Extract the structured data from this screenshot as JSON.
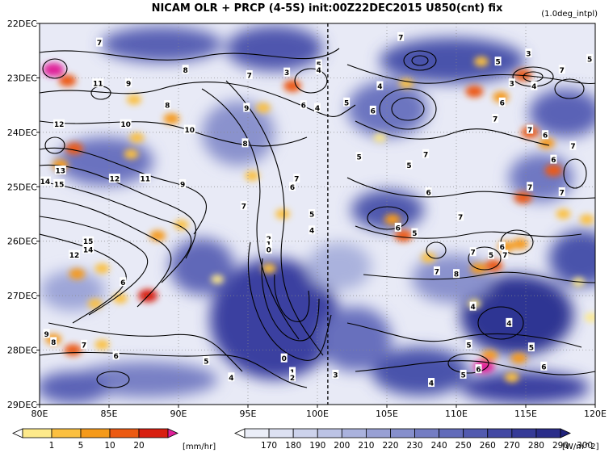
{
  "chart_data": {
    "type": "heatmap",
    "title": "NICAM  OLR + PRCP (4-5S) init:00Z22DEC2015  U850(cnt)  fix",
    "subtitle": "(1.0deg_intpl)",
    "xlabel": "",
    "ylabel": "",
    "x_ticks": [
      "80E",
      "85E",
      "90E",
      "95E",
      "100E",
      "105E",
      "110E",
      "115E",
      "120E"
    ],
    "x_tick_values": [
      80,
      85,
      90,
      95,
      100,
      105,
      110,
      115,
      120
    ],
    "xlim": [
      80,
      120
    ],
    "y_ticks": [
      "22DEC",
      "23DEC",
      "24DEC",
      "25DEC",
      "26DEC",
      "27DEC",
      "28DEC",
      "29DEC"
    ],
    "y_tick_values": [
      22,
      23,
      24,
      25,
      26,
      27,
      28,
      29
    ],
    "ylim": [
      22,
      29
    ],
    "grid": true,
    "reference_line": {
      "x": 100.75,
      "style": "dashed"
    },
    "precip_colorbar": {
      "unit": "[mm/hr]",
      "ticks": [
        "1",
        "5",
        "10",
        "20"
      ],
      "colors": [
        "#ffffff",
        "#fde98a",
        "#fbc040",
        "#f59a1a",
        "#ec5a12",
        "#d81f10",
        "#e0209a"
      ]
    },
    "olr_colorbar": {
      "unit": "[W/m^2]",
      "ticks": [
        "170",
        "180",
        "190",
        "200",
        "210",
        "220",
        "230",
        "240",
        "250",
        "260",
        "270",
        "280",
        "290",
        "300"
      ],
      "colors": [
        "#ffffff",
        "#ebeef8",
        "#dde1f2",
        "#cdd3ec",
        "#bcc3e5",
        "#aab2dd",
        "#98a0d4",
        "#868fcc",
        "#747dc3",
        "#626bba",
        "#525aaf",
        "#4248a3",
        "#353a97",
        "#2a2d8a",
        "#20227c"
      ]
    },
    "contour_labels": [
      {
        "text": "7",
        "lon": 84.3,
        "day": 22.35
      },
      {
        "text": "8",
        "lon": 90.5,
        "day": 22.85
      },
      {
        "text": "7",
        "lon": 95.1,
        "day": 22.95
      },
      {
        "text": "5",
        "lon": 100.1,
        "day": 22.75
      },
      {
        "text": "4",
        "lon": 100.1,
        "day": 22.85
      },
      {
        "text": "3",
        "lon": 97.8,
        "day": 22.9
      },
      {
        "text": "11",
        "lon": 84.2,
        "day": 23.1
      },
      {
        "text": "9",
        "lon": 86.4,
        "day": 23.1
      },
      {
        "text": "8",
        "lon": 89.2,
        "day": 23.5
      },
      {
        "text": "9",
        "lon": 94.9,
        "day": 23.55
      },
      {
        "text": "6",
        "lon": 99.0,
        "day": 23.5
      },
      {
        "text": "4",
        "lon": 100.0,
        "day": 23.55
      },
      {
        "text": "5",
        "lon": 102.1,
        "day": 23.45
      },
      {
        "text": "12",
        "lon": 81.4,
        "day": 23.85
      },
      {
        "text": "10",
        "lon": 86.2,
        "day": 23.85
      },
      {
        "text": "10",
        "lon": 90.8,
        "day": 23.95
      },
      {
        "text": "8",
        "lon": 94.8,
        "day": 24.2
      },
      {
        "text": "13",
        "lon": 81.5,
        "day": 24.7
      },
      {
        "text": "14",
        "lon": 80.4,
        "day": 24.9
      },
      {
        "text": "15",
        "lon": 81.4,
        "day": 24.95
      },
      {
        "text": "12",
        "lon": 85.4,
        "day": 24.85
      },
      {
        "text": "11",
        "lon": 87.6,
        "day": 24.85
      },
      {
        "text": "9",
        "lon": 90.3,
        "day": 24.95
      },
      {
        "text": "7",
        "lon": 98.5,
        "day": 24.85
      },
      {
        "text": "6",
        "lon": 98.2,
        "day": 25.0
      },
      {
        "text": "7",
        "lon": 94.7,
        "day": 25.35
      },
      {
        "text": "5",
        "lon": 99.6,
        "day": 25.5
      },
      {
        "text": "4",
        "lon": 99.6,
        "day": 25.8
      },
      {
        "text": "15",
        "lon": 83.5,
        "day": 26.0
      },
      {
        "text": "14",
        "lon": 83.5,
        "day": 26.15
      },
      {
        "text": "12",
        "lon": 82.5,
        "day": 26.25
      },
      {
        "text": "2",
        "lon": 96.5,
        "day": 25.95
      },
      {
        "text": "1",
        "lon": 96.5,
        "day": 26.05
      },
      {
        "text": "0",
        "lon": 96.5,
        "day": 26.15
      },
      {
        "text": "6",
        "lon": 86.0,
        "day": 26.75
      },
      {
        "text": "9",
        "lon": 80.5,
        "day": 27.7
      },
      {
        "text": "8",
        "lon": 81.0,
        "day": 27.85
      },
      {
        "text": "7",
        "lon": 83.2,
        "day": 27.9
      },
      {
        "text": "6",
        "lon": 85.5,
        "day": 28.1
      },
      {
        "text": "5",
        "lon": 92.0,
        "day": 28.2
      },
      {
        "text": "4",
        "lon": 93.8,
        "day": 28.5
      },
      {
        "text": "0",
        "lon": 97.6,
        "day": 28.15
      },
      {
        "text": "1",
        "lon": 98.2,
        "day": 28.4
      },
      {
        "text": "2",
        "lon": 98.2,
        "day": 28.5
      },
      {
        "text": "3",
        "lon": 101.3,
        "day": 28.45
      },
      {
        "text": "7",
        "lon": 106.0,
        "day": 22.25
      },
      {
        "text": "4",
        "lon": 104.5,
        "day": 23.15
      },
      {
        "text": "6",
        "lon": 104.0,
        "day": 23.6
      },
      {
        "text": "5",
        "lon": 103.0,
        "day": 24.45
      },
      {
        "text": "7",
        "lon": 107.8,
        "day": 24.4
      },
      {
        "text": "5",
        "lon": 106.6,
        "day": 24.6
      },
      {
        "text": "6",
        "lon": 108.0,
        "day": 25.1
      },
      {
        "text": "7",
        "lon": 110.3,
        "day": 25.55
      },
      {
        "text": "6",
        "lon": 105.8,
        "day": 25.75
      },
      {
        "text": "5",
        "lon": 107.0,
        "day": 25.85
      },
      {
        "text": "7",
        "lon": 111.2,
        "day": 26.2
      },
      {
        "text": "7",
        "lon": 108.6,
        "day": 26.55
      },
      {
        "text": "8",
        "lon": 110.0,
        "day": 26.6
      },
      {
        "text": "5",
        "lon": 112.5,
        "day": 26.25
      },
      {
        "text": "6",
        "lon": 113.3,
        "day": 26.1
      },
      {
        "text": "7",
        "lon": 113.5,
        "day": 26.25
      },
      {
        "text": "4",
        "lon": 111.2,
        "day": 27.2
      },
      {
        "text": "5",
        "lon": 110.9,
        "day": 27.9
      },
      {
        "text": "4",
        "lon": 113.8,
        "day": 27.5
      },
      {
        "text": "5",
        "lon": 115.4,
        "day": 27.95
      },
      {
        "text": "6",
        "lon": 116.3,
        "day": 28.3
      },
      {
        "text": "6",
        "lon": 111.6,
        "day": 28.35
      },
      {
        "text": "5",
        "lon": 110.5,
        "day": 28.45
      },
      {
        "text": "4",
        "lon": 108.2,
        "day": 28.6
      },
      {
        "text": "5",
        "lon": 113.0,
        "day": 22.7
      },
      {
        "text": "3",
        "lon": 115.2,
        "day": 22.55
      },
      {
        "text": "5",
        "lon": 119.6,
        "day": 22.65
      },
      {
        "text": "7",
        "lon": 117.6,
        "day": 22.85
      },
      {
        "text": "3",
        "lon": 114.0,
        "day": 23.1
      },
      {
        "text": "4",
        "lon": 115.6,
        "day": 23.15
      },
      {
        "text": "6",
        "lon": 113.3,
        "day": 23.45
      },
      {
        "text": "7",
        "lon": 112.8,
        "day": 23.75
      },
      {
        "text": "7",
        "lon": 115.3,
        "day": 23.95
      },
      {
        "text": "6",
        "lon": 116.4,
        "day": 24.05
      },
      {
        "text": "7",
        "lon": 118.4,
        "day": 24.25
      },
      {
        "text": "6",
        "lon": 117.0,
        "day": 24.5
      },
      {
        "text": "7",
        "lon": 117.6,
        "day": 25.1
      },
      {
        "text": "7",
        "lon": 115.3,
        "day": 25.0
      }
    ],
    "precip_patches": [
      {
        "lon": 82,
        "day": 23.05,
        "level": 4
      },
      {
        "lon": 81,
        "day": 22.85,
        "level": 6
      },
      {
        "lon": 86.8,
        "day": 23.4,
        "level": 2
      },
      {
        "lon": 89.5,
        "day": 23.75,
        "level": 3
      },
      {
        "lon": 87,
        "day": 24.1,
        "level": 2
      },
      {
        "lon": 82.5,
        "day": 24.3,
        "level": 4
      },
      {
        "lon": 81.5,
        "day": 24.6,
        "level": 3
      },
      {
        "lon": 86.6,
        "day": 24.4,
        "level": 2
      },
      {
        "lon": 90.2,
        "day": 25.7,
        "level": 2
      },
      {
        "lon": 88.5,
        "day": 25.9,
        "level": 3
      },
      {
        "lon": 84.5,
        "day": 26.5,
        "level": 2
      },
      {
        "lon": 82.7,
        "day": 26.6,
        "level": 3
      },
      {
        "lon": 85.8,
        "day": 27.05,
        "level": 2
      },
      {
        "lon": 87.8,
        "day": 27.0,
        "level": 5
      },
      {
        "lon": 84.0,
        "day": 27.15,
        "level": 2
      },
      {
        "lon": 81.0,
        "day": 27.8,
        "level": 3
      },
      {
        "lon": 84.5,
        "day": 27.9,
        "level": 2
      },
      {
        "lon": 82.4,
        "day": 28.0,
        "level": 4
      },
      {
        "lon": 96.5,
        "day": 26.5,
        "level": 2
      },
      {
        "lon": 98.2,
        "day": 23.15,
        "level": 4
      },
      {
        "lon": 96.1,
        "day": 23.55,
        "level": 2
      },
      {
        "lon": 95.3,
        "day": 24.8,
        "level": 2
      },
      {
        "lon": 97.5,
        "day": 25.5,
        "level": 2
      },
      {
        "lon": 92.8,
        "day": 26.7,
        "level": 1
      },
      {
        "lon": 105.4,
        "day": 25.6,
        "level": 3
      },
      {
        "lon": 106.2,
        "day": 25.9,
        "level": 4
      },
      {
        "lon": 108.0,
        "day": 26.3,
        "level": 2
      },
      {
        "lon": 111.6,
        "day": 26.5,
        "level": 3
      },
      {
        "lon": 112.7,
        "day": 26.45,
        "level": 4
      },
      {
        "lon": 111.3,
        "day": 27.15,
        "level": 1
      },
      {
        "lon": 112.4,
        "day": 28.1,
        "level": 3
      },
      {
        "lon": 114.5,
        "day": 28.15,
        "level": 3
      },
      {
        "lon": 112.0,
        "day": 28.3,
        "level": 6
      },
      {
        "lon": 114.0,
        "day": 28.5,
        "level": 2
      },
      {
        "lon": 106.4,
        "day": 23.1,
        "level": 2
      },
      {
        "lon": 104.5,
        "day": 24.1,
        "level": 1
      },
      {
        "lon": 111.8,
        "day": 22.7,
        "level": 2
      },
      {
        "lon": 111.3,
        "day": 23.25,
        "level": 4
      },
      {
        "lon": 113.2,
        "day": 23.35,
        "level": 3
      },
      {
        "lon": 114.8,
        "day": 22.95,
        "level": 4
      },
      {
        "lon": 115.3,
        "day": 24.0,
        "level": 4
      },
      {
        "lon": 116.5,
        "day": 24.2,
        "level": 3
      },
      {
        "lon": 117.0,
        "day": 24.7,
        "level": 4
      },
      {
        "lon": 114.8,
        "day": 25.2,
        "level": 4
      },
      {
        "lon": 113.6,
        "day": 26.1,
        "level": 3
      },
      {
        "lon": 114.6,
        "day": 26.05,
        "level": 3
      },
      {
        "lon": 117.7,
        "day": 25.5,
        "level": 2
      },
      {
        "lon": 119.4,
        "day": 25.6,
        "level": 2
      },
      {
        "lon": 118.8,
        "day": 26.75,
        "level": 1
      },
      {
        "lon": 119.7,
        "day": 27.4,
        "level": 1
      }
    ]
  }
}
